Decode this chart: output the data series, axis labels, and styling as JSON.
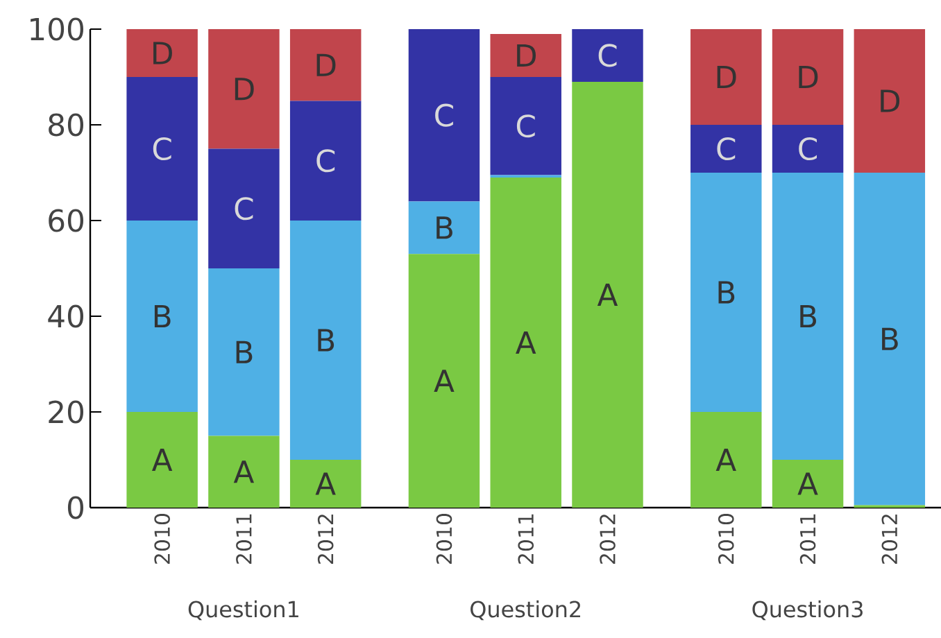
{
  "chart_data": {
    "type": "bar",
    "stacked": true,
    "categories": [
      "2010",
      "2011",
      "2012",
      "2010",
      "2011",
      "2012",
      "2010",
      "2011",
      "2012"
    ],
    "series": [
      {
        "color": "#7ac943",
        "values": [
          20,
          15,
          10,
          53,
          69,
          89,
          20,
          10,
          0.5
        ],
        "value_labels": [
          "A",
          "A",
          "A",
          "A",
          "A",
          "A",
          "A",
          "A",
          null
        ]
      },
      {
        "color": "#4fb0e5",
        "values": [
          40,
          35,
          50,
          11,
          0.5,
          0,
          50,
          60,
          69.5
        ],
        "value_labels": [
          "B",
          "B",
          "B",
          "B",
          null,
          null,
          "B",
          "B",
          "B"
        ]
      },
      {
        "color": "#3333a5",
        "values": [
          30,
          25,
          25,
          36,
          20.5,
          11,
          10,
          10,
          0
        ],
        "value_labels": [
          "C",
          "C",
          "C",
          "C",
          "C",
          "C",
          "C",
          "C",
          null
        ]
      },
      {
        "color": "#c1454c",
        "values": [
          10,
          25,
          15,
          0,
          9,
          0,
          20,
          20,
          30
        ],
        "value_labels": [
          "D",
          "D",
          "D",
          null,
          "D",
          null,
          "D",
          "D",
          "D"
        ]
      }
    ],
    "ylim": [
      0,
      100
    ],
    "yticks": [
      0,
      20,
      40,
      60,
      80,
      100
    ],
    "annotations": [
      "Question1",
      "Question2",
      "Question3"
    ]
  }
}
